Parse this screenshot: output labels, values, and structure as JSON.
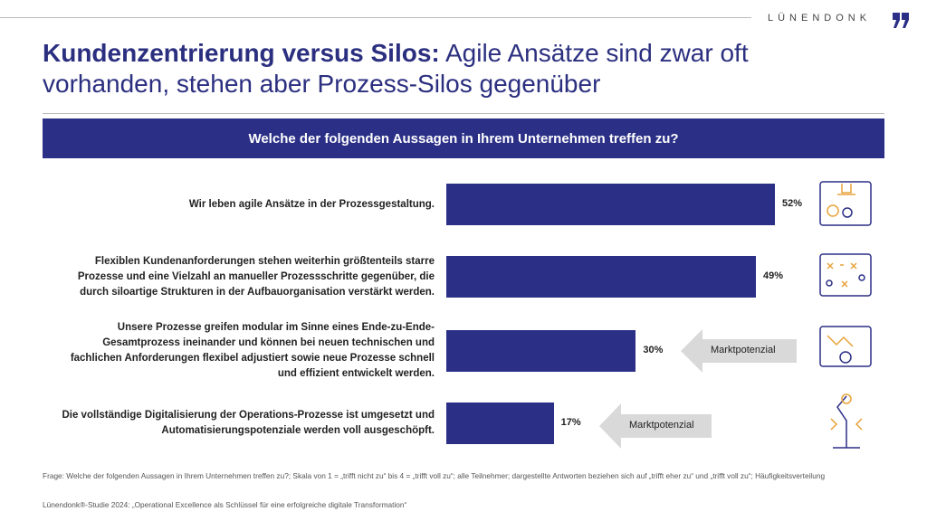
{
  "logo": "LÜNENDONK",
  "title_bold": "Kundenzentrierung versus Silos:",
  "title_rest": "Agile Ansätze sind zwar oft vorhanden, stehen aber Prozess-Silos gegenüber",
  "chart_data": {
    "type": "bar",
    "orientation": "horizontal",
    "title": "Welche der folgenden Aussagen in Ihrem Unternehmen treffen zu?",
    "categories": [
      "Wir leben agile Ansätze in der Prozessgestaltung.",
      "Flexiblen Kundenanforderungen stehen weiterhin größtenteils starre Prozesse und eine Vielzahl an manueller Prozessschritte gegenüber, die durch siloartige Strukturen in der Aufbauorganisation verstärkt werden.",
      "Unsere Prozesse greifen modular im Sinne eines Ende-zu-Ende-Gesamtprozess ineinander und können bei neuen technischen und fachlichen Anforderungen flexibel adjustiert sowie neue Prozesse schnell und effizient entwickelt werden.",
      "Die vollständige Digitalisierung der Operations-Prozesse ist umgesetzt und Automatisierungspotenziale werden voll ausgeschöpft."
    ],
    "values": [
      52,
      49,
      30,
      17
    ],
    "value_labels": [
      "52%",
      "49%",
      "30%",
      "17%"
    ],
    "color": "#2b2f86",
    "annotations": [
      "Marktpotenzial",
      "Marktpotenzial"
    ]
  },
  "footnote": "Frage: Welche der folgenden Aussagen in Ihrem Unternehmen treffen zu?; Skala von 1 = „trifft nicht zu“ bis 4 = „trifft voll zu“; alle Teilnehmer; dargestellte Antworten beziehen sich auf „trifft eher zu“ und „trifft voll zu“; Häufigkeitsverteilung",
  "source": "Lünendonk®-Studie 2024: „Operational Excellence als Schlüssel für eine erfolgreiche digitale Transformation“"
}
